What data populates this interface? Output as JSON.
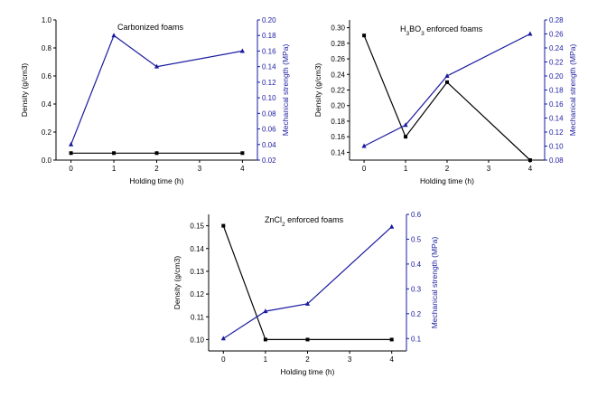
{
  "chart_data": [
    {
      "type": "line",
      "title": "Carbonized foams",
      "xlabel": "Holding time (h)",
      "ylabel_left": "Density (g/cm3)",
      "ylabel_right": "Mechanical strength (MPa)",
      "x": [
        0,
        1,
        2,
        4
      ],
      "xlim": [
        -0.35,
        4.35
      ],
      "xticks": [
        "0",
        "1",
        "2",
        "3",
        "4"
      ],
      "ylim_left": [
        0.0,
        1.0
      ],
      "yticks_left": [
        "0.0",
        "0.2",
        "0.4",
        "0.6",
        "0.8",
        "1.0"
      ],
      "ylim_right": [
        0.02,
        0.2
      ],
      "yticks_right": [
        "0.02",
        "0.04",
        "0.06",
        "0.08",
        "0.10",
        "0.12",
        "0.14",
        "0.16",
        "0.18",
        "0.20"
      ],
      "series": [
        {
          "axis": "left",
          "color": "#000000",
          "marker": "square",
          "values": [
            0.05,
            0.05,
            0.05,
            0.05
          ]
        },
        {
          "axis": "right",
          "color": "#1a1aa0",
          "marker": "triangle",
          "values": [
            0.04,
            0.18,
            0.14,
            0.16
          ]
        }
      ]
    },
    {
      "type": "line",
      "title": "H3BO3 enforced foams",
      "xlabel": "Holding time (h)",
      "ylabel_left": "Density (g/cm3)",
      "ylabel_right": "Mechanical strength (MPa)",
      "x": [
        0,
        1,
        2,
        4
      ],
      "xlim": [
        -0.35,
        4.35
      ],
      "xticks": [
        "0",
        "1",
        "2",
        "3",
        "4"
      ],
      "ylim_left": [
        0.13,
        0.31
      ],
      "yticks_left": [
        "0.14",
        "0.16",
        "0.18",
        "0.20",
        "0.22",
        "0.24",
        "0.26",
        "0.28",
        "0.30"
      ],
      "ylim_right": [
        0.08,
        0.28
      ],
      "yticks_right": [
        "0.08",
        "0.10",
        "0.12",
        "0.14",
        "0.16",
        "0.18",
        "0.20",
        "0.22",
        "0.24",
        "0.26",
        "0.28"
      ],
      "series": [
        {
          "axis": "left",
          "color": "#000000",
          "marker": "square",
          "values": [
            0.29,
            0.16,
            0.23,
            0.13
          ]
        },
        {
          "axis": "right",
          "color": "#1a1aa0",
          "marker": "triangle",
          "values": [
            0.1,
            0.13,
            0.2,
            0.26
          ]
        }
      ]
    },
    {
      "type": "line",
      "title": "ZnCl2 enforced foams",
      "xlabel": "Holding time (h)",
      "ylabel_left": "Density (g/cm3)",
      "ylabel_right": "Mechanical strength (MPa)",
      "x": [
        0,
        1,
        2,
        4
      ],
      "xlim": [
        -0.35,
        4.35
      ],
      "xticks": [
        "0",
        "1",
        "2",
        "3",
        "4"
      ],
      "ylim_left": [
        0.095,
        0.155
      ],
      "yticks_left": [
        "0.10",
        "0.11",
        "0.12",
        "0.13",
        "0.14",
        "0.15"
      ],
      "ylim_right": [
        0.05,
        0.6
      ],
      "yticks_right": [
        "0.1",
        "0.2",
        "0.3",
        "0.4",
        "0.5",
        "0.6"
      ],
      "series": [
        {
          "axis": "left",
          "color": "#000000",
          "marker": "square",
          "values": [
            0.15,
            0.1,
            0.1,
            0.1
          ]
        },
        {
          "axis": "right",
          "color": "#1a1aa0",
          "marker": "triangle",
          "values": [
            0.1,
            0.21,
            0.24,
            0.55
          ]
        }
      ]
    }
  ]
}
